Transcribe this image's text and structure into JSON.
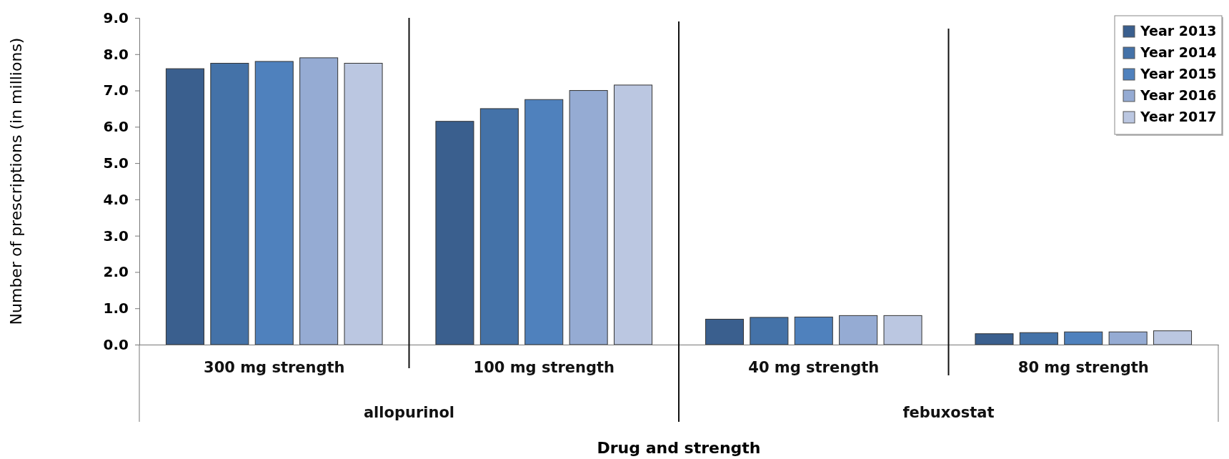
{
  "chart_data": {
    "type": "bar",
    "xlabel": "Drug and strength",
    "ylabel": "Number of prescriptions (in millions)",
    "categories": [
      "300 mg strength",
      "100 mg strength",
      "40 mg strength",
      "80 mg strength"
    ],
    "series": [
      {
        "name": "Year 2013",
        "color": "#3a5f8e",
        "values": [
          7.6,
          6.15,
          0.7,
          0.3
        ]
      },
      {
        "name": "Year 2014",
        "color": "#4472a8",
        "values": [
          7.75,
          6.5,
          0.75,
          0.33
        ]
      },
      {
        "name": "Year 2015",
        "color": "#4f81bd",
        "values": [
          7.8,
          6.75,
          0.76,
          0.35
        ]
      },
      {
        "name": "Year 2016",
        "color": "#95abd3",
        "values": [
          7.9,
          7.0,
          0.8,
          0.35
        ]
      },
      {
        "name": "Year 2017",
        "color": "#bbc7e1",
        "values": [
          7.75,
          7.15,
          0.8,
          0.38
        ]
      }
    ],
    "ylim": [
      0,
      9
    ],
    "yticks": [
      {
        "value": 0,
        "label": "0.0"
      },
      {
        "value": 1,
        "label": "1.0"
      },
      {
        "value": 2,
        "label": "2.0"
      },
      {
        "value": 3,
        "label": "3.0"
      },
      {
        "value": 4,
        "label": "4.0"
      },
      {
        "value": 5,
        "label": "5.0"
      },
      {
        "value": 6,
        "label": "6.0"
      },
      {
        "value": 7,
        "label": "7.0"
      },
      {
        "value": 8,
        "label": "8.0"
      },
      {
        "value": 9,
        "label": "9.0"
      }
    ],
    "annotations": [
      "allopurinol",
      "febuxostat"
    ],
    "legend": "top right",
    "grid": false
  }
}
